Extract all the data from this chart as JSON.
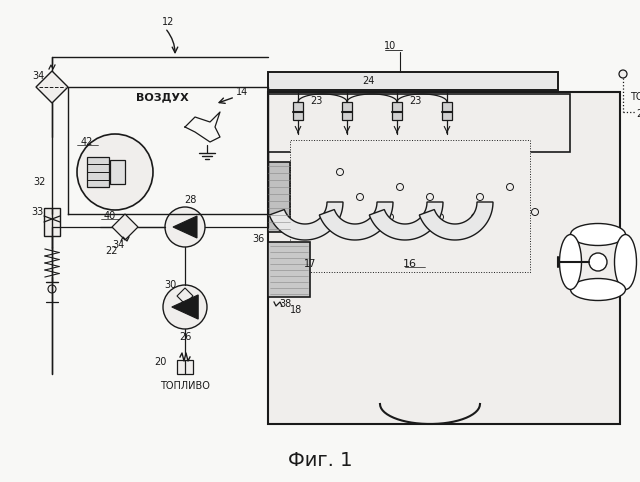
{
  "bg": "#f0eeec",
  "lc": "#1a1a1a",
  "title": "Фиг. 1"
}
